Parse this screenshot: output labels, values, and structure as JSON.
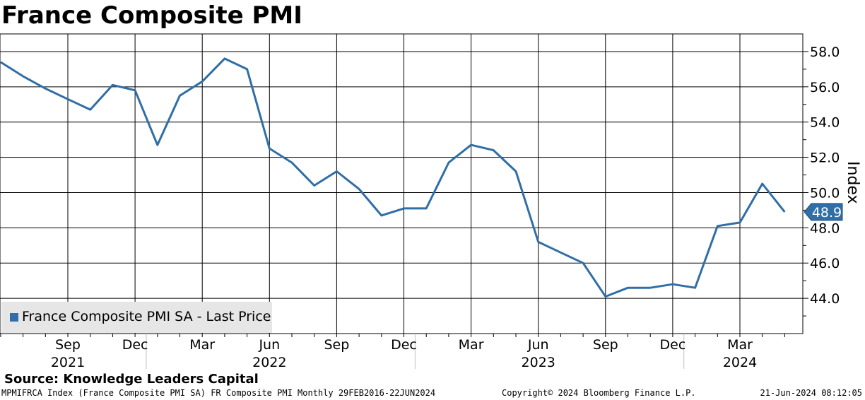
{
  "chart_data": {
    "type": "line",
    "title": "France Composite PMI",
    "ylabel": "Index",
    "ylim": [
      42.0,
      59.0
    ],
    "yticks": [
      "44.0",
      "46.0",
      "48.0",
      "50.0",
      "52.0",
      "54.0",
      "56.0",
      "58.0"
    ],
    "y_scale": "linear",
    "grid": true,
    "legend_position": "bottom-left",
    "x_ticks": [
      {
        "month": "Sep",
        "year": "2021",
        "date": "2021-09"
      },
      {
        "month": "Dec",
        "year": "",
        "date": "2021-12"
      },
      {
        "month": "Mar",
        "year": "",
        "date": "2022-03"
      },
      {
        "month": "Jun",
        "year": "2022",
        "date": "2022-06"
      },
      {
        "month": "Sep",
        "year": "",
        "date": "2022-09"
      },
      {
        "month": "Dec",
        "year": "",
        "date": "2022-12"
      },
      {
        "month": "Mar",
        "year": "",
        "date": "2023-03"
      },
      {
        "month": "Jun",
        "year": "2023",
        "date": "2023-06"
      },
      {
        "month": "Sep",
        "year": "",
        "date": "2023-09"
      },
      {
        "month": "Dec",
        "year": "",
        "date": "2023-12"
      },
      {
        "month": "Mar",
        "year": "2024",
        "date": "2024-03"
      }
    ],
    "series": [
      {
        "name": "France Composite PMI SA - Last Price",
        "color": "#2f6ea6",
        "last_value_label": "48.9",
        "points": [
          {
            "x": "2021-06",
            "y": 57.4
          },
          {
            "x": "2021-07",
            "y": 56.6
          },
          {
            "x": "2021-08",
            "y": 55.9
          },
          {
            "x": "2021-09",
            "y": 55.3
          },
          {
            "x": "2021-10",
            "y": 54.7
          },
          {
            "x": "2021-11",
            "y": 56.1
          },
          {
            "x": "2021-12",
            "y": 55.8
          },
          {
            "x": "2022-01",
            "y": 52.7
          },
          {
            "x": "2022-02",
            "y": 55.5
          },
          {
            "x": "2022-03",
            "y": 56.3
          },
          {
            "x": "2022-04",
            "y": 57.6
          },
          {
            "x": "2022-05",
            "y": 57.0
          },
          {
            "x": "2022-06",
            "y": 52.5
          },
          {
            "x": "2022-07",
            "y": 51.7
          },
          {
            "x": "2022-08",
            "y": 50.4
          },
          {
            "x": "2022-09",
            "y": 51.2
          },
          {
            "x": "2022-10",
            "y": 50.2
          },
          {
            "x": "2022-11",
            "y": 48.7
          },
          {
            "x": "2022-12",
            "y": 49.1
          },
          {
            "x": "2023-01",
            "y": 49.1
          },
          {
            "x": "2023-02",
            "y": 51.7
          },
          {
            "x": "2023-03",
            "y": 52.7
          },
          {
            "x": "2023-04",
            "y": 52.4
          },
          {
            "x": "2023-05",
            "y": 51.2
          },
          {
            "x": "2023-06",
            "y": 47.2
          },
          {
            "x": "2023-07",
            "y": 46.6
          },
          {
            "x": "2023-08",
            "y": 46.0
          },
          {
            "x": "2023-09",
            "y": 44.1
          },
          {
            "x": "2023-10",
            "y": 44.6
          },
          {
            "x": "2023-11",
            "y": 44.6
          },
          {
            "x": "2023-12",
            "y": 44.8
          },
          {
            "x": "2024-01",
            "y": 44.6
          },
          {
            "x": "2024-02",
            "y": 48.1
          },
          {
            "x": "2024-03",
            "y": 48.3
          },
          {
            "x": "2024-04",
            "y": 50.5
          },
          {
            "x": "2024-05",
            "y": 48.9
          }
        ]
      }
    ],
    "source": "Source: Knowledge Leaders Capital",
    "footer_left": "MPMIFRCA Index (France Composite PMI SA) FR Composite PMI  Monthly 29FEB2016-22JUN2024",
    "footer_mid": "Copyright© 2024 Bloomberg Finance L.P.",
    "footer_right": "21-Jun-2024 08:12:05"
  }
}
